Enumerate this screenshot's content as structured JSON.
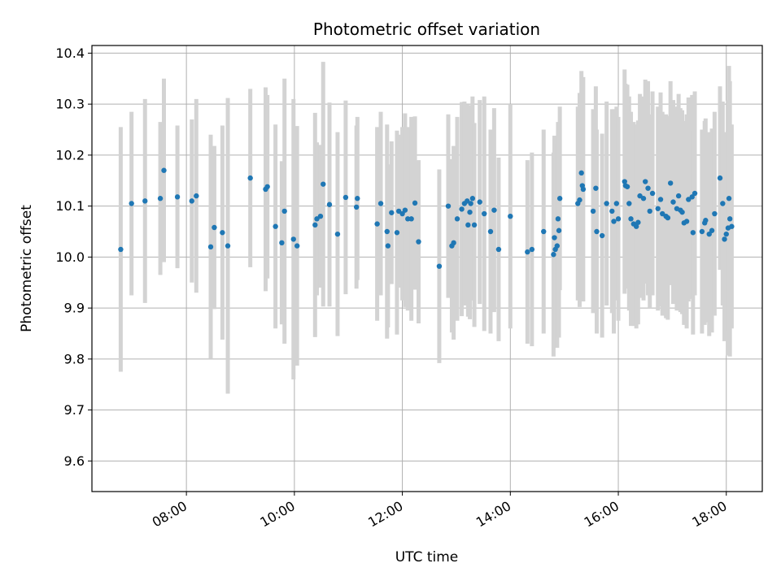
{
  "chart_data": {
    "type": "scatter",
    "title": "Photometric offset variation",
    "xlabel": "UTC time",
    "ylabel": "Photometric offset",
    "x_ticks": [
      "08:00",
      "10:00",
      "12:00",
      "14:00",
      "16:00",
      "18:00"
    ],
    "y_ticks": [
      "9.6",
      "9.7",
      "9.8",
      "9.9",
      "10.0",
      "10.1",
      "10.2",
      "10.3",
      "10.4"
    ],
    "xlim": [
      "06:15",
      "18:40"
    ],
    "ylim": [
      9.54,
      10.415
    ],
    "grid": true,
    "colors": {
      "marker": "#1f77b4",
      "errorbar": "#d3d3d3",
      "grid": "#b0b0b0"
    },
    "series": [
      {
        "x": [
          "06:47",
          "06:59",
          "07:14",
          "07:31",
          "07:35",
          "07:50",
          "08:06",
          "08:11",
          "08:27",
          "08:31",
          "08:40",
          "08:46",
          "09:11",
          "09:28",
          "09:30",
          "09:39",
          "09:46",
          "09:49",
          "09:59",
          "10:03",
          "10:23",
          "10:25",
          "10:29",
          "10:32",
          "10:39",
          "10:48",
          "10:57",
          "11:09",
          "11:10",
          "11:32",
          "11:36",
          "11:43",
          "11:44",
          "11:48",
          "11:54",
          "11:56",
          "12:00",
          "12:03",
          "12:06",
          "12:10",
          "12:14",
          "12:18",
          "12:41",
          "12:51",
          "12:55",
          "12:57",
          "13:01",
          "13:06",
          "13:09",
          "13:12",
          "13:13",
          "13:15",
          "13:16",
          "13:18",
          "13:20",
          "13:26",
          "13:31",
          "13:38",
          "13:42",
          "13:47",
          "14:00",
          "14:19",
          "14:24",
          "14:37",
          "14:48",
          "14:49",
          "14:50",
          "14:52",
          "14:53",
          "14:54",
          "14:55",
          "15:15",
          "15:17",
          "15:19",
          "15:20",
          "15:21",
          "15:32",
          "15:35",
          "15:36",
          "15:42",
          "15:47",
          "15:53",
          "15:55",
          "15:58",
          "16:00",
          "16:07",
          "16:08",
          "16:10",
          "16:12",
          "16:14",
          "16:17",
          "16:20",
          "16:22",
          "16:24",
          "16:28",
          "16:30",
          "16:33",
          "16:35",
          "16:38",
          "16:44",
          "16:47",
          "16:49",
          "16:53",
          "16:55",
          "16:58",
          "17:01",
          "17:05",
          "17:07",
          "17:09",
          "17:11",
          "17:13",
          "17:16",
          "17:18",
          "17:22",
          "17:23",
          "17:25",
          "17:33",
          "17:36",
          "17:37",
          "17:41",
          "17:44",
          "17:47",
          "17:53",
          "17:56",
          "17:58",
          "18:00",
          "18:02",
          "18:03",
          "18:04",
          "18:06"
        ],
        "y": [
          10.015,
          10.105,
          10.11,
          10.115,
          10.17,
          10.118,
          10.11,
          10.12,
          10.02,
          10.058,
          10.048,
          10.022,
          10.155,
          10.133,
          10.138,
          10.06,
          10.028,
          10.09,
          10.035,
          10.022,
          10.063,
          10.075,
          10.08,
          10.143,
          10.103,
          10.045,
          10.117,
          10.098,
          10.115,
          10.065,
          10.105,
          10.05,
          10.022,
          10.087,
          10.048,
          10.09,
          10.085,
          10.092,
          10.075,
          10.075,
          10.106,
          10.03,
          9.982,
          10.1,
          10.022,
          10.028,
          10.075,
          10.094,
          10.105,
          10.11,
          10.063,
          10.088,
          10.105,
          10.115,
          10.063,
          10.108,
          10.085,
          10.05,
          10.092,
          10.015,
          10.08,
          10.01,
          10.015,
          10.05,
          10.005,
          10.038,
          10.015,
          10.022,
          10.075,
          10.052,
          10.115,
          10.105,
          10.112,
          10.165,
          10.14,
          10.133,
          10.09,
          10.135,
          10.05,
          10.042,
          10.105,
          10.09,
          10.07,
          10.105,
          10.075,
          10.148,
          10.14,
          10.138,
          10.105,
          10.075,
          10.065,
          10.06,
          10.068,
          10.12,
          10.115,
          10.148,
          10.135,
          10.09,
          10.125,
          10.095,
          10.113,
          10.085,
          10.08,
          10.077,
          10.145,
          10.108,
          10.095,
          10.12,
          10.092,
          10.088,
          10.067,
          10.07,
          10.113,
          10.118,
          10.048,
          10.125,
          10.05,
          10.067,
          10.072,
          10.045,
          10.052,
          10.085,
          10.155,
          10.105,
          10.035,
          10.045,
          10.057,
          10.115,
          10.075,
          10.06
        ],
        "err": [
          0.24,
          0.18,
          0.2,
          0.15,
          0.18,
          0.14,
          0.16,
          0.19,
          0.22,
          0.16,
          0.21,
          0.29,
          0.175,
          0.2,
          0.18,
          0.2,
          0.16,
          0.26,
          0.275,
          0.235,
          0.22,
          0.15,
          0.14,
          0.24,
          0.2,
          0.2,
          0.19,
          0.16,
          0.16,
          0.19,
          0.18,
          0.21,
          0.16,
          0.14,
          0.2,
          0.15,
          0.17,
          0.19,
          0.18,
          0.2,
          0.17,
          0.16,
          0.19,
          0.18,
          0.17,
          0.19,
          0.2,
          0.21,
          0.2,
          0.19,
          0.18,
          0.21,
          0.19,
          0.2,
          0.2,
          0.2,
          0.23,
          0.2,
          0.2,
          0.18,
          0.22,
          0.18,
          0.19,
          0.2,
          0.2,
          0.2,
          0.18,
          0.2,
          0.19,
          0.21,
          0.18,
          0.19,
          0.21,
          0.2,
          0.2,
          0.22,
          0.2,
          0.2,
          0.2,
          0.2,
          0.2,
          0.2,
          0.22,
          0.19,
          0.2,
          0.22,
          0.2,
          0.2,
          0.21,
          0.21,
          0.2,
          0.2,
          0.2,
          0.2,
          0.2,
          0.2,
          0.21,
          0.19,
          0.2,
          0.2,
          0.21,
          0.2,
          0.2,
          0.2,
          0.2,
          0.2,
          0.2,
          0.2,
          0.2,
          0.2,
          0.2,
          0.21,
          0.2,
          0.2,
          0.2,
          0.2,
          0.2,
          0.2,
          0.2,
          0.2,
          0.2,
          0.2,
          0.18,
          0.2,
          0.2,
          0.2,
          0.25,
          0.26,
          0.27,
          0.2
        ]
      }
    ]
  }
}
